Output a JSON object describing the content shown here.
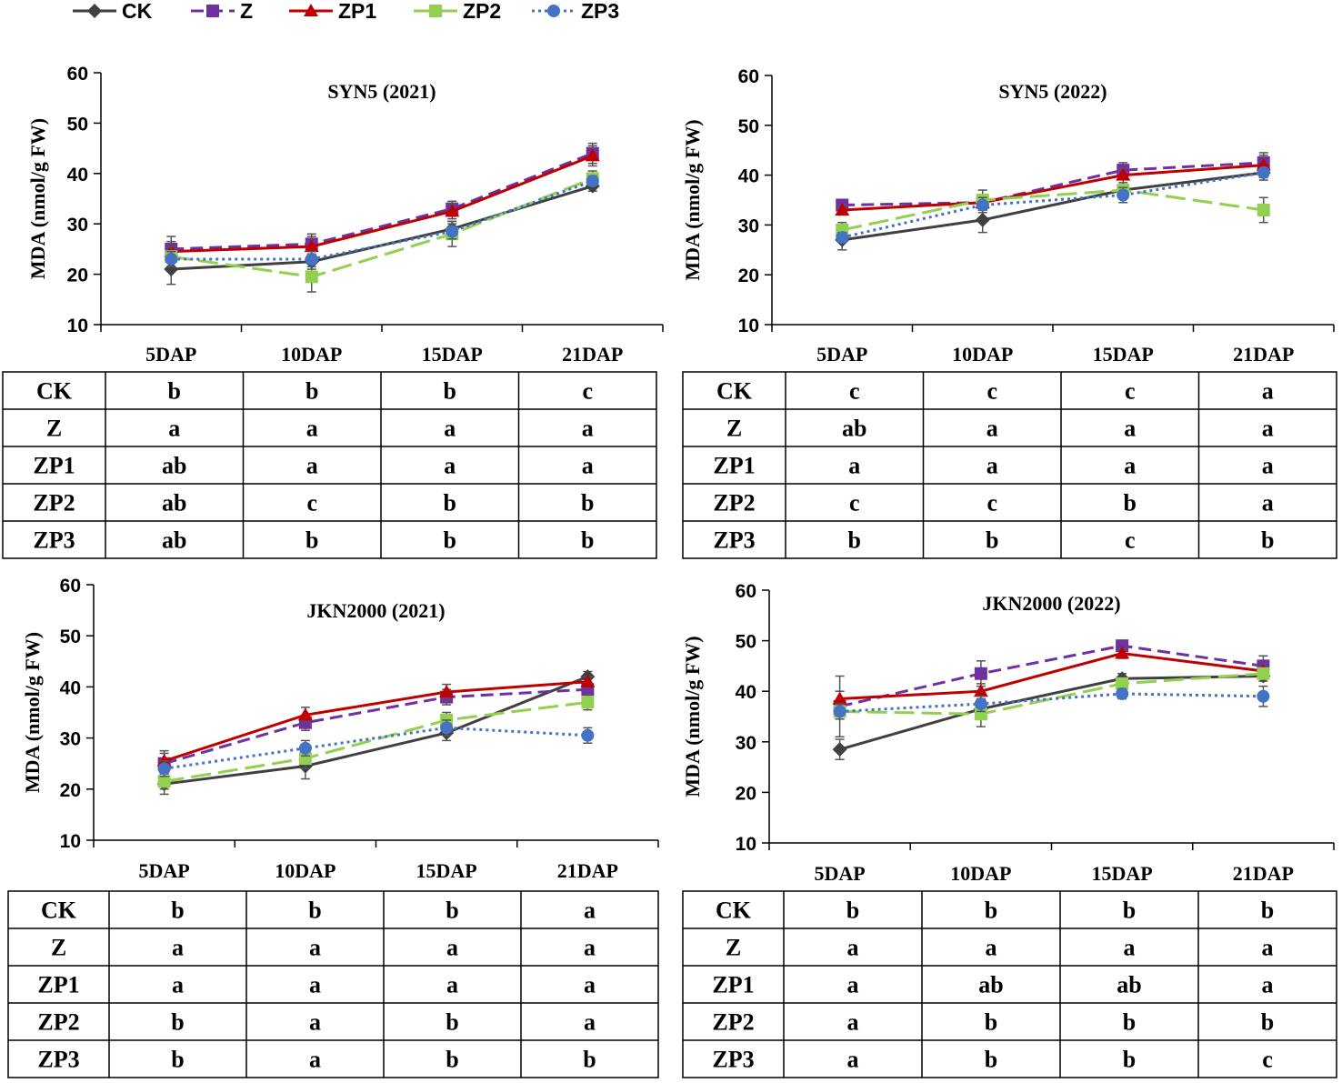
{
  "legend": [
    {
      "name": "CK",
      "color": "#404040",
      "marker": "diamond",
      "dash": "solid"
    },
    {
      "name": "Z",
      "color": "#7030A0",
      "marker": "square",
      "dash": "dashed"
    },
    {
      "name": "ZP1",
      "color": "#C00000",
      "marker": "triangle",
      "dash": "solid"
    },
    {
      "name": "ZP2",
      "color": "#92D050",
      "marker": "square",
      "dash": "longdash"
    },
    {
      "name": "ZP3",
      "color": "#4472C4",
      "marker": "circle",
      "dash": "dotted"
    }
  ],
  "ylabel": "MDA (nmol/g FW)",
  "chart_data": [
    {
      "type": "line",
      "title": "SYN5 (2021)",
      "categories": [
        "5DAP",
        "10DAP",
        "15DAP",
        "21DAP"
      ],
      "ylabel": "MDA (nmol/g FW)",
      "ylim": [
        10,
        60
      ],
      "yticks": [
        "10",
        "20",
        "30",
        "40",
        "50",
        "60"
      ],
      "series": [
        {
          "name": "CK",
          "values": [
            21.0,
            22.5,
            29.0,
            37.5
          ],
          "errors": [
            3.0,
            1.5,
            1.5,
            1.0
          ]
        },
        {
          "name": "Z",
          "values": [
            25.0,
            26.0,
            33.0,
            44.0
          ],
          "errors": [
            2.5,
            2.0,
            1.5,
            2.0
          ]
        },
        {
          "name": "ZP1",
          "values": [
            24.5,
            25.5,
            32.5,
            43.5
          ],
          "errors": [
            2.0,
            2.0,
            1.5,
            2.0
          ]
        },
        {
          "name": "ZP2",
          "values": [
            23.5,
            19.5,
            28.0,
            39.0
          ],
          "errors": [
            2.0,
            3.0,
            2.5,
            1.5
          ]
        },
        {
          "name": "ZP3",
          "values": [
            23.0,
            23.0,
            28.5,
            38.5
          ],
          "errors": [
            1.5,
            1.5,
            1.5,
            1.0
          ]
        }
      ],
      "table": [
        {
          "label": "CK",
          "cells": [
            "b",
            "b",
            "b",
            "c"
          ]
        },
        {
          "label": "Z",
          "cells": [
            "a",
            "a",
            "a",
            "a"
          ]
        },
        {
          "label": "ZP1",
          "cells": [
            "ab",
            "a",
            "a",
            "a"
          ]
        },
        {
          "label": "ZP2",
          "cells": [
            "ab",
            "c",
            "b",
            "b"
          ]
        },
        {
          "label": "ZP3",
          "cells": [
            "ab",
            "b",
            "b",
            "b"
          ]
        }
      ]
    },
    {
      "type": "line",
      "title": "SYN5 (2022)",
      "categories": [
        "5DAP",
        "10DAP",
        "15DAP",
        "21DAP"
      ],
      "ylabel": "MDA (nmol/g FW)",
      "ylim": [
        10,
        60
      ],
      "yticks": [
        "10",
        "20",
        "30",
        "40",
        "50",
        "60"
      ],
      "series": [
        {
          "name": "CK",
          "values": [
            27.0,
            31.0,
            37.0,
            40.5
          ],
          "errors": [
            2.0,
            2.5,
            1.0,
            1.5
          ]
        },
        {
          "name": "Z",
          "values": [
            34.0,
            34.5,
            41.0,
            42.5
          ],
          "errors": [
            1.0,
            1.5,
            1.5,
            2.0
          ]
        },
        {
          "name": "ZP1",
          "values": [
            33.0,
            34.5,
            40.0,
            42.0
          ],
          "errors": [
            1.0,
            1.5,
            1.5,
            2.0
          ]
        },
        {
          "name": "ZP2",
          "values": [
            29.0,
            35.0,
            37.0,
            33.0
          ],
          "errors": [
            1.5,
            2.0,
            1.0,
            2.5
          ]
        },
        {
          "name": "ZP3",
          "values": [
            27.5,
            34.0,
            36.0,
            40.5
          ],
          "errors": [
            1.0,
            1.5,
            1.5,
            1.0
          ]
        }
      ],
      "table": [
        {
          "label": "CK",
          "cells": [
            "c",
            "c",
            "c",
            "a"
          ]
        },
        {
          "label": "Z",
          "cells": [
            "ab",
            "a",
            "a",
            "a"
          ]
        },
        {
          "label": "ZP1",
          "cells": [
            "a",
            "a",
            "a",
            "a"
          ]
        },
        {
          "label": "ZP2",
          "cells": [
            "c",
            "c",
            "b",
            "a"
          ]
        },
        {
          "label": "ZP3",
          "cells": [
            "b",
            "b",
            "c",
            "b"
          ]
        }
      ]
    },
    {
      "type": "line",
      "title": "JKN2000 (2021)",
      "categories": [
        "5DAP",
        "10DAP",
        "15DAP",
        "21DAP"
      ],
      "ylabel": "MDA (nmol/g FW)",
      "ylim": [
        10,
        60
      ],
      "yticks": [
        "10",
        "20",
        "30",
        "40",
        "50",
        "60"
      ],
      "series": [
        {
          "name": "CK",
          "values": [
            21.0,
            24.5,
            31.0,
            42.0
          ],
          "errors": [
            2.0,
            2.5,
            1.5,
            1.0
          ]
        },
        {
          "name": "Z",
          "values": [
            25.0,
            33.0,
            38.0,
            39.5
          ],
          "errors": [
            2.0,
            1.5,
            1.5,
            1.0
          ]
        },
        {
          "name": "ZP1",
          "values": [
            25.5,
            34.5,
            39.0,
            41.0
          ],
          "errors": [
            2.0,
            1.5,
            1.5,
            1.0
          ]
        },
        {
          "name": "ZP2",
          "values": [
            21.5,
            26.0,
            33.5,
            37.0
          ],
          "errors": [
            1.5,
            2.0,
            1.5,
            1.5
          ]
        },
        {
          "name": "ZP3",
          "values": [
            24.0,
            28.0,
            32.0,
            30.5
          ],
          "errors": [
            1.5,
            1.5,
            1.5,
            1.5
          ]
        }
      ],
      "table": [
        {
          "label": "CK",
          "cells": [
            "b",
            "b",
            "b",
            "a"
          ]
        },
        {
          "label": "Z",
          "cells": [
            "a",
            "a",
            "a",
            "a"
          ]
        },
        {
          "label": "ZP1",
          "cells": [
            "a",
            "a",
            "a",
            "a"
          ]
        },
        {
          "label": "ZP2",
          "cells": [
            "b",
            "a",
            "b",
            "a"
          ]
        },
        {
          "label": "ZP3",
          "cells": [
            "b",
            "a",
            "b",
            "b"
          ]
        }
      ]
    },
    {
      "type": "line",
      "title": "JKN2000 (2022)",
      "categories": [
        "5DAP",
        "10DAP",
        "15DAP",
        "21DAP"
      ],
      "ylabel": "MDA (nmol/g FW)",
      "ylim": [
        10,
        60
      ],
      "yticks": [
        "10",
        "20",
        "30",
        "40",
        "50",
        "60"
      ],
      "series": [
        {
          "name": "CK",
          "values": [
            28.5,
            36.5,
            42.5,
            43.0
          ],
          "errors": [
            2.0,
            1.5,
            1.0,
            1.0
          ]
        },
        {
          "name": "Z",
          "values": [
            37.0,
            43.5,
            49.0,
            45.0
          ],
          "errors": [
            6.0,
            2.5,
            1.0,
            2.0
          ]
        },
        {
          "name": "ZP1",
          "values": [
            38.5,
            40.0,
            47.5,
            44.0
          ],
          "errors": [
            1.5,
            1.5,
            1.0,
            1.5
          ]
        },
        {
          "name": "ZP2",
          "values": [
            36.0,
            35.5,
            41.5,
            43.5
          ],
          "errors": [
            1.5,
            2.5,
            1.0,
            1.0
          ]
        },
        {
          "name": "ZP3",
          "values": [
            36.0,
            37.5,
            39.5,
            39.0
          ],
          "errors": [
            1.5,
            1.5,
            1.0,
            2.0
          ]
        }
      ],
      "table": [
        {
          "label": "CK",
          "cells": [
            "b",
            "b",
            "b",
            "b"
          ]
        },
        {
          "label": "Z",
          "cells": [
            "a",
            "a",
            "a",
            "a"
          ]
        },
        {
          "label": "ZP1",
          "cells": [
            "a",
            "ab",
            "ab",
            "a"
          ]
        },
        {
          "label": "ZP2",
          "cells": [
            "a",
            "b",
            "b",
            "b"
          ]
        },
        {
          "label": "ZP3",
          "cells": [
            "a",
            "b",
            "b",
            "c"
          ]
        }
      ]
    }
  ]
}
